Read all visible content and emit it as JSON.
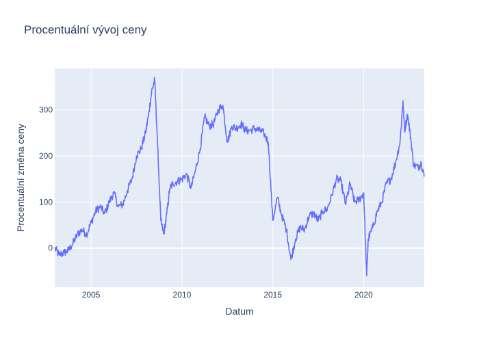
{
  "chart_data": {
    "type": "line",
    "title": "Procentuální vývoj ceny",
    "xlabel": "Datum",
    "ylabel": "Procentuální změna ceny",
    "x_tick_labels": [
      "2005",
      "2010",
      "2015",
      "2020"
    ],
    "y_tick_labels": [
      "0",
      "100",
      "200",
      "300"
    ],
    "y_ticks": [
      0,
      100,
      200,
      300
    ],
    "x_ticks": [
      2005,
      2010,
      2015,
      2020
    ],
    "xlim": [
      "2003-01",
      "2023-05"
    ],
    "ylim": [
      -85,
      390
    ],
    "grid": true,
    "legend": "none",
    "series": [
      {
        "color": "#636efa",
        "x": [
          "2003-01",
          "2003-04",
          "2003-07",
          "2003-10",
          "2004-01",
          "2004-04",
          "2004-07",
          "2004-10",
          "2005-01",
          "2005-04",
          "2005-07",
          "2005-10",
          "2006-01",
          "2006-04",
          "2006-07",
          "2006-10",
          "2007-01",
          "2007-04",
          "2007-07",
          "2007-10",
          "2008-01",
          "2008-03",
          "2008-05",
          "2008-07",
          "2008-09",
          "2008-11",
          "2009-01",
          "2009-03",
          "2009-05",
          "2009-07",
          "2009-10",
          "2010-01",
          "2010-04",
          "2010-07",
          "2010-10",
          "2011-01",
          "2011-04",
          "2011-07",
          "2011-10",
          "2012-01",
          "2012-04",
          "2012-07",
          "2012-10",
          "2013-01",
          "2013-04",
          "2013-07",
          "2013-10",
          "2014-01",
          "2014-04",
          "2014-07",
          "2014-10",
          "2015-01",
          "2015-04",
          "2015-07",
          "2015-10",
          "2016-01",
          "2016-04",
          "2016-07",
          "2016-10",
          "2017-01",
          "2017-04",
          "2017-07",
          "2017-10",
          "2018-01",
          "2018-04",
          "2018-07",
          "2018-10",
          "2019-01",
          "2019-04",
          "2019-07",
          "2019-10",
          "2020-01",
          "2020-03",
          "2020-04",
          "2020-07",
          "2020-10",
          "2021-01",
          "2021-04",
          "2021-07",
          "2021-10",
          "2022-01",
          "2022-03",
          "2022-04",
          "2022-06",
          "2022-08",
          "2022-10",
          "2023-01",
          "2023-03",
          "2023-05"
        ],
        "y": [
          0,
          -15,
          -10,
          -5,
          10,
          30,
          40,
          30,
          55,
          80,
          90,
          75,
          100,
          120,
          90,
          95,
          125,
          150,
          200,
          215,
          250,
          290,
          340,
          365,
          220,
          60,
          30,
          75,
          130,
          140,
          145,
          150,
          160,
          130,
          170,
          215,
          285,
          265,
          270,
          300,
          310,
          230,
          265,
          260,
          270,
          255,
          255,
          260,
          255,
          250,
          230,
          60,
          110,
          70,
          40,
          -25,
          20,
          45,
          40,
          70,
          75,
          60,
          80,
          85,
          115,
          150,
          145,
          95,
          140,
          100,
          105,
          120,
          -60,
          20,
          45,
          80,
          100,
          140,
          150,
          185,
          230,
          320,
          255,
          290,
          240,
          180,
          175,
          185,
          155
        ]
      }
    ]
  }
}
